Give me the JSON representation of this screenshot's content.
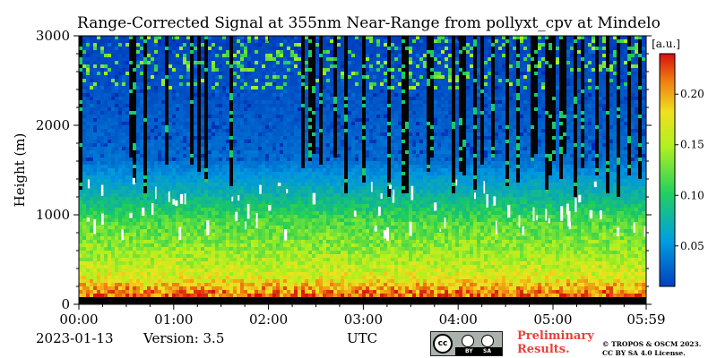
{
  "chart_data": {
    "type": "heatmap",
    "title": "Range-Corrected Signal at 355nm Near-Range from pollyxt_cpv at Mindelo",
    "xlabel": "UTC",
    "ylabel": "Height (m)",
    "x_ticks": [
      "00:00",
      "01:00",
      "02:00",
      "03:00",
      "04:00",
      "05:00",
      "05:59"
    ],
    "x_tick_hours": [
      0,
      1,
      2,
      3,
      4,
      5,
      5.983
    ],
    "xlim_hours": [
      0,
      5.983
    ],
    "y_ticks": [
      0,
      1000,
      2000,
      3000
    ],
    "ylim": [
      0,
      3000
    ],
    "colorbar": {
      "unit": "[a.u.]",
      "ticks": [
        0.05,
        0.1,
        0.15,
        0.2
      ],
      "tick_labels": [
        "0.05",
        "0.10",
        "0.15",
        "0.20"
      ],
      "range": [
        0.01,
        0.24
      ],
      "colormap": "jet-like (blue-cyan-green-yellow-red)"
    },
    "profile_description": [
      {
        "height_m": 100,
        "value": 0.22
      },
      {
        "height_m": 300,
        "value": 0.17
      },
      {
        "height_m": 600,
        "value": 0.14
      },
      {
        "height_m": 900,
        "value": 0.12
      },
      {
        "height_m": 1200,
        "value": 0.08
      },
      {
        "height_m": 1600,
        "value": 0.04
      },
      {
        "height_m": 2200,
        "value": 0.03
      },
      {
        "height_m": 3000,
        "value": 0.02
      }
    ],
    "cloud_signal_value": "saturated (white) near 800-1500 m"
  },
  "footer": {
    "date": "2023-01-13",
    "version": "Version: 3.5",
    "time_label": "UTC",
    "preliminary_line1": "Preliminary",
    "preliminary_line2": "Results.",
    "copyright_line1": "© TROPOS & OSCM 2023.",
    "copyright_line2": "CC BY SA 4.0 License.",
    "license_badge": {
      "left": "cc",
      "by": "BY",
      "sa": "SA"
    }
  },
  "colors": {
    "accent_red": "#e8423a",
    "badge_grey": "#aab2ab"
  }
}
